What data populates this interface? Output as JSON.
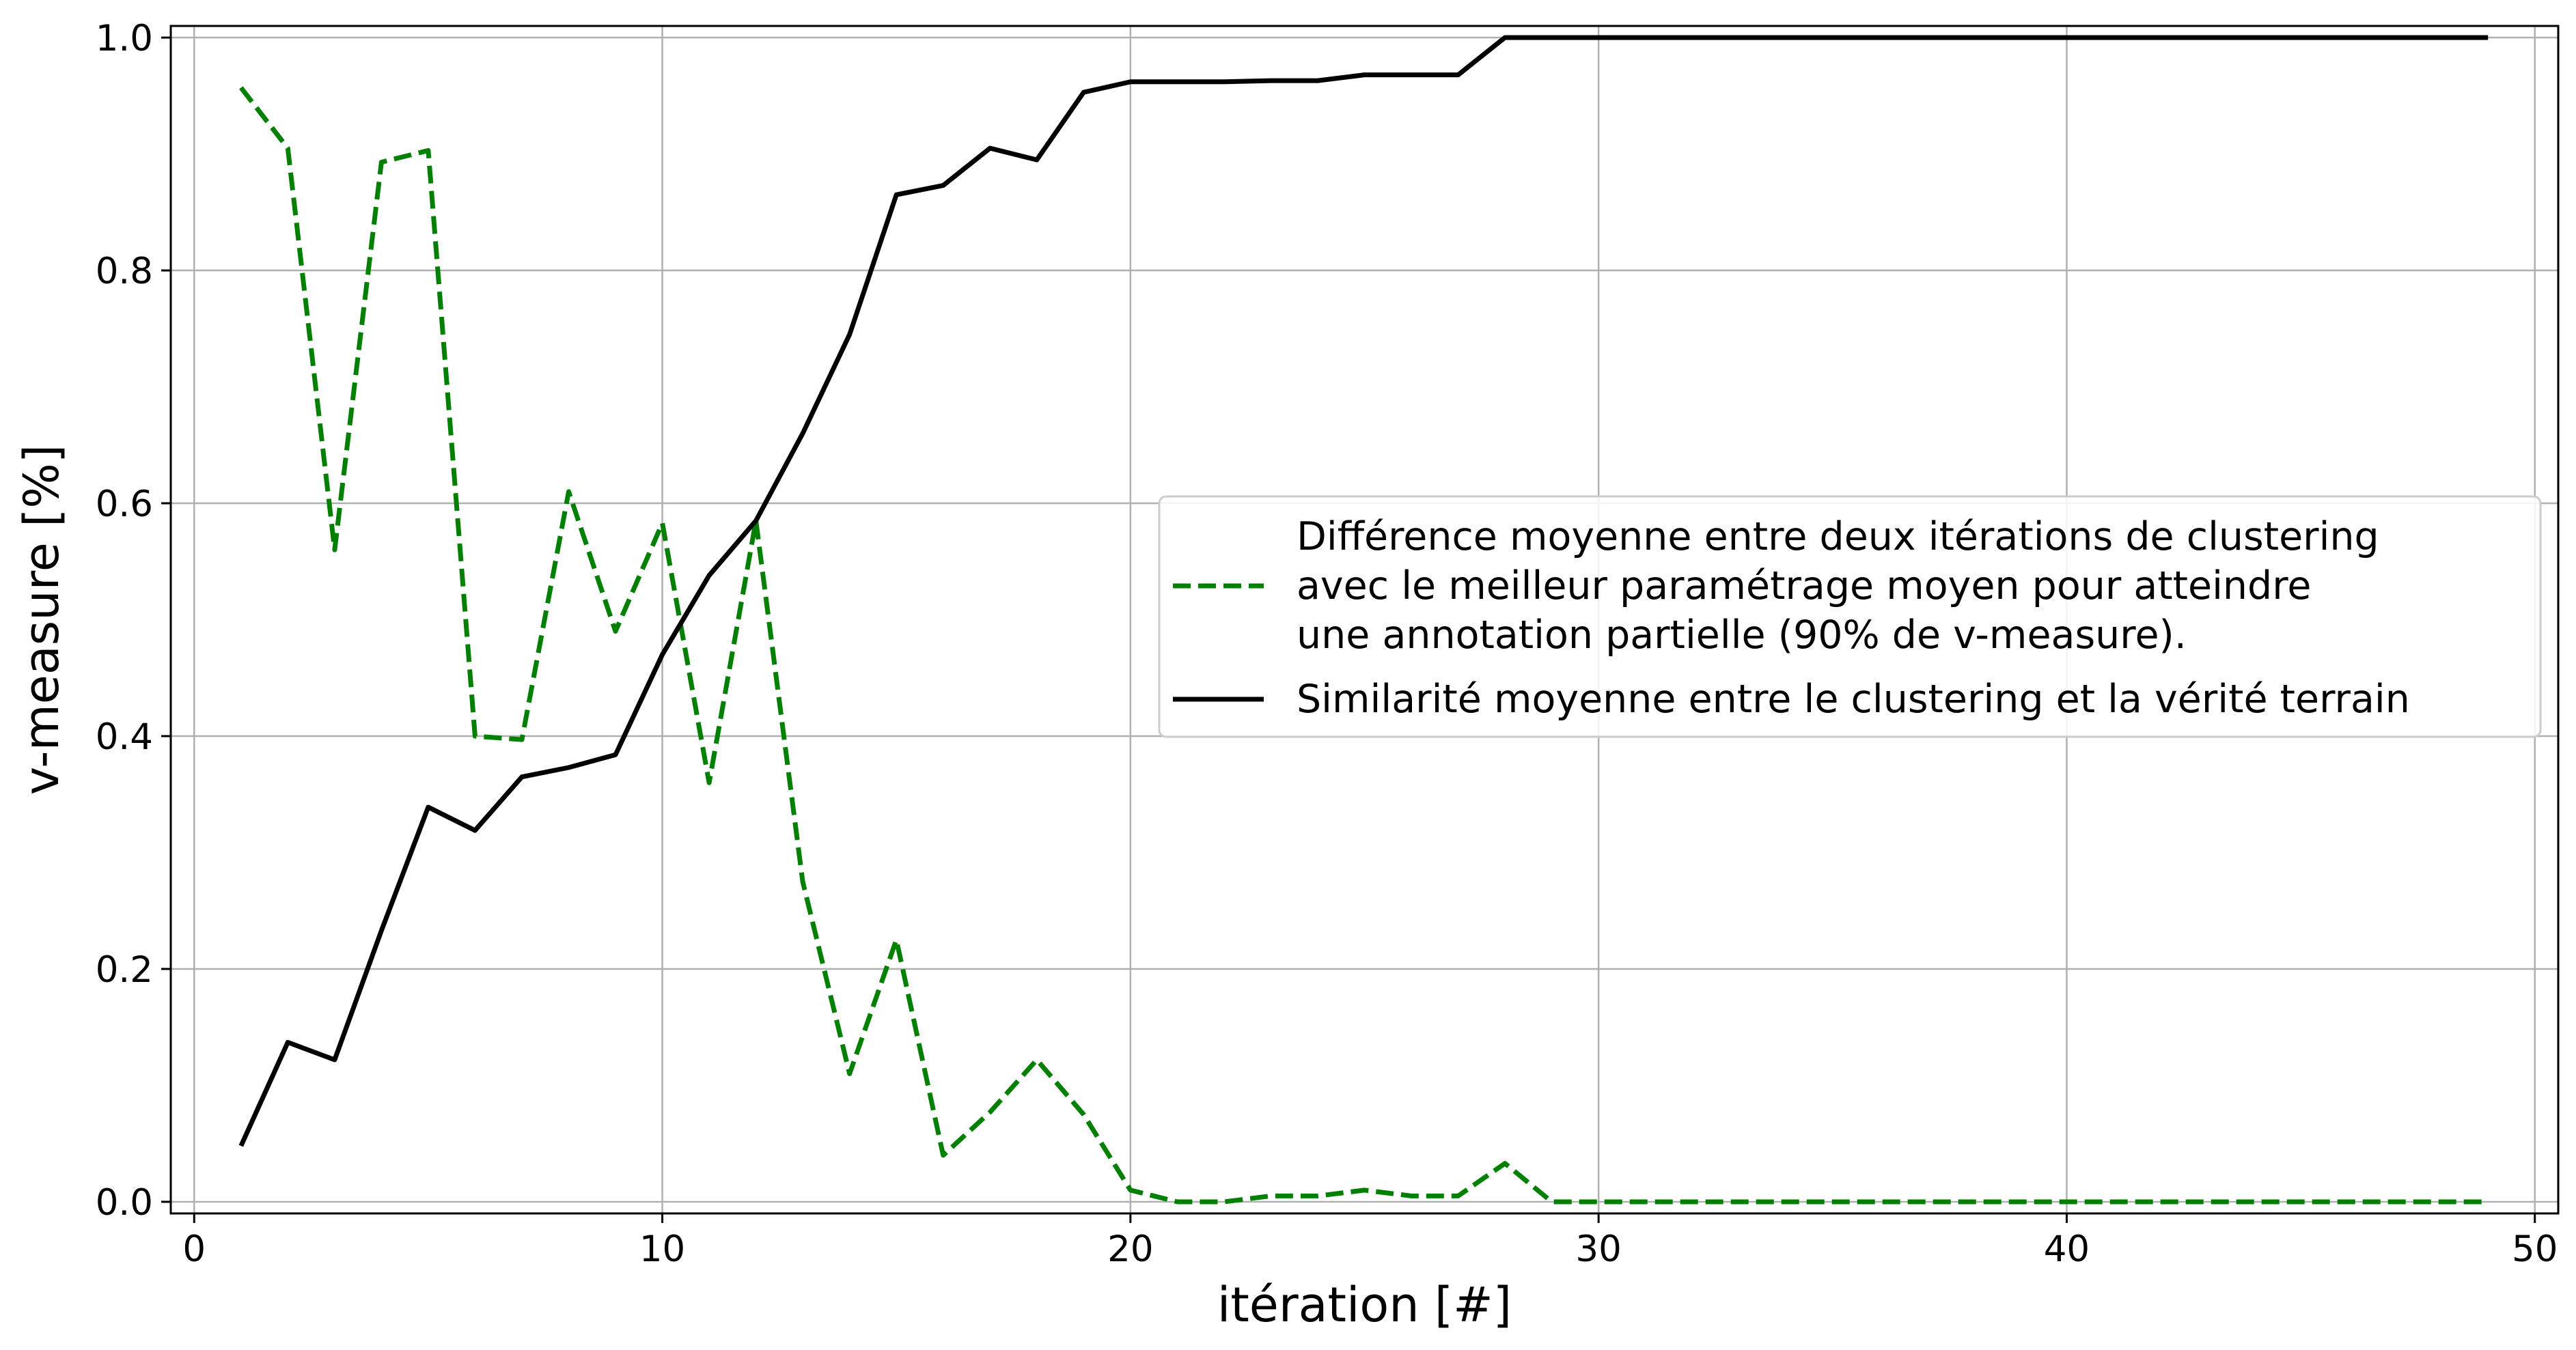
{
  "chart_data": {
    "type": "line",
    "xlabel": "itération [#]",
    "ylabel": "v-measure [%]",
    "xlim": [
      -0.5,
      50.5
    ],
    "ylim": [
      -0.01,
      1.01
    ],
    "x_ticks": [
      0,
      10,
      20,
      30,
      40,
      50
    ],
    "x_tick_labels": [
      "0",
      "10",
      "20",
      "30",
      "40",
      "50"
    ],
    "y_ticks": [
      0.0,
      0.2,
      0.4,
      0.6,
      0.8,
      1.0
    ],
    "y_tick_labels": [
      "0.0",
      "0.2",
      "0.4",
      "0.6",
      "0.8",
      "1.0"
    ],
    "grid": true,
    "legend_position": "center-right",
    "series": [
      {
        "name": "Différence moyenne entre deux itérations de clustering avec le meilleur paramétrage moyen pour atteindre une annotation partielle (90% de v-measure).",
        "legend_lines": [
          "Différence moyenne entre deux itérations de clustering",
          "avec le meilleur paramétrage moyen pour atteindre",
          "une annotation partielle (90% de v-measure)."
        ],
        "color": "#008000",
        "style": "dashed",
        "x": [
          1,
          2,
          3,
          4,
          5,
          6,
          7,
          8,
          9,
          10,
          11,
          12,
          13,
          14,
          15,
          16,
          17,
          18,
          19,
          20,
          21,
          22,
          23,
          24,
          25,
          26,
          27,
          28,
          29,
          30,
          31,
          32,
          33,
          34,
          35,
          36,
          37,
          38,
          39,
          40,
          41,
          42,
          43,
          44,
          45,
          46,
          47,
          48,
          49
        ],
        "values": [
          0.957,
          0.905,
          0.56,
          0.893,
          0.903,
          0.4,
          0.397,
          0.61,
          0.49,
          0.583,
          0.36,
          0.585,
          0.275,
          0.11,
          0.225,
          0.04,
          0.077,
          0.122,
          0.075,
          0.01,
          0.0,
          0.0,
          0.005,
          0.005,
          0.01,
          0.005,
          0.005,
          0.033,
          0.0,
          0.0,
          0.0,
          0.0,
          0.0,
          0.0,
          0.0,
          0.0,
          0.0,
          0.0,
          0.0,
          0.0,
          0.0,
          0.0,
          0.0,
          0.0,
          0.0,
          0.0,
          0.0,
          0.0,
          0.0
        ]
      },
      {
        "name": "Similarité moyenne entre le clustering et la vérité terrain",
        "legend_lines": [
          "Similarité moyenne entre le clustering et la vérité terrain"
        ],
        "color": "#000000",
        "style": "solid",
        "x": [
          1,
          2,
          3,
          4,
          5,
          6,
          7,
          8,
          9,
          10,
          11,
          12,
          13,
          14,
          15,
          16,
          17,
          18,
          19,
          20,
          21,
          22,
          23,
          24,
          25,
          26,
          27,
          28,
          29,
          30,
          31,
          32,
          33,
          34,
          35,
          36,
          37,
          38,
          39,
          40,
          41,
          42,
          43,
          44,
          45,
          46,
          47,
          48,
          49
        ],
        "values": [
          0.048,
          0.137,
          0.122,
          0.233,
          0.339,
          0.319,
          0.365,
          0.373,
          0.384,
          0.47,
          0.538,
          0.585,
          0.66,
          0.745,
          0.865,
          0.873,
          0.905,
          0.895,
          0.953,
          0.962,
          0.962,
          0.962,
          0.963,
          0.963,
          0.968,
          0.968,
          0.968,
          1.0,
          1.0,
          1.0,
          1.0,
          1.0,
          1.0,
          1.0,
          1.0,
          1.0,
          1.0,
          1.0,
          1.0,
          1.0,
          1.0,
          1.0,
          1.0,
          1.0,
          1.0,
          1.0,
          1.0,
          1.0,
          1.0
        ]
      }
    ]
  }
}
